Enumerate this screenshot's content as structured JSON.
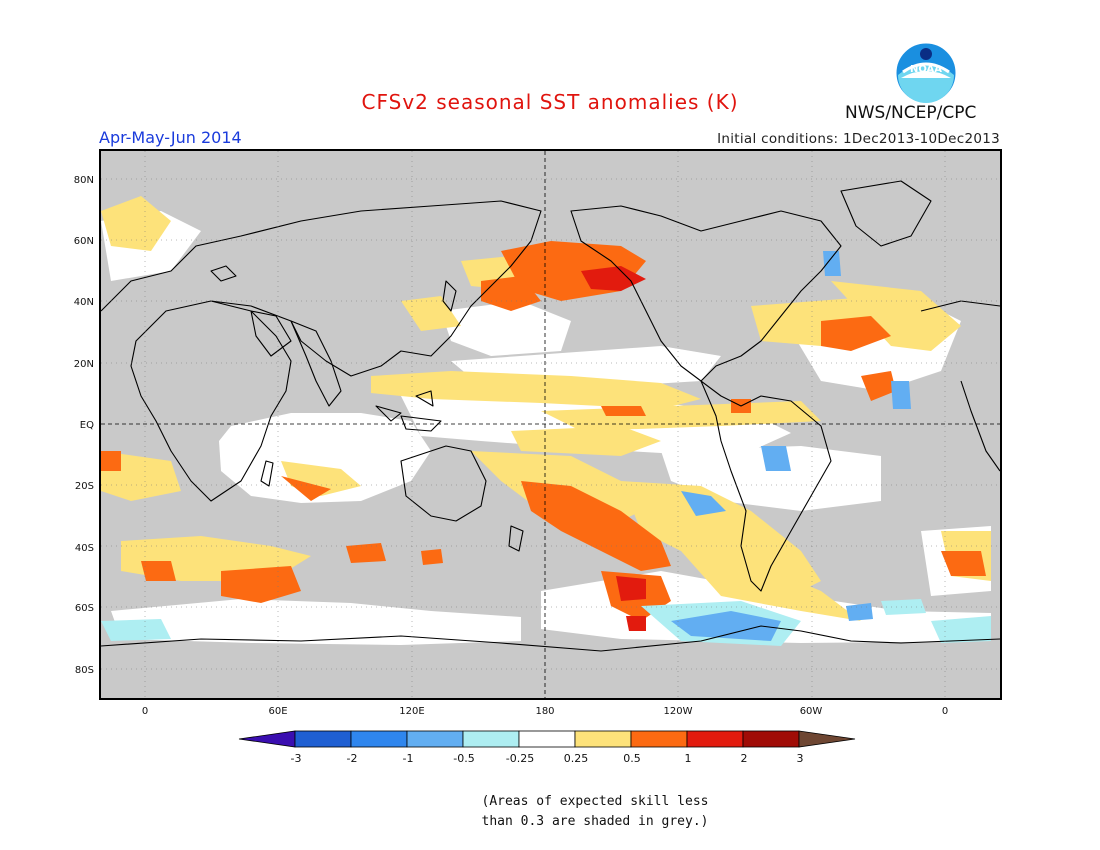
{
  "title": "CFSv2 seasonal SST anomalies (K)",
  "period": "Apr-May-Jun 2014",
  "initial_conditions": "Initial conditions: 1Dec2013-10Dec2013",
  "agency": "NWS/NCEP/CPC",
  "logo_text": "NOAA",
  "lat_labels": [
    "80N",
    "60N",
    "40N",
    "20N",
    "EQ",
    "20S",
    "40S",
    "60S",
    "80S"
  ],
  "lon_labels": [
    "0",
    "60E",
    "120E",
    "180",
    "120W",
    "60W",
    "0"
  ],
  "colorbar": {
    "labels": [
      "-3",
      "-2",
      "-1",
      "-0.5",
      "-0.25",
      "0.25",
      "0.5",
      "1",
      "2",
      "3"
    ],
    "colors": [
      "#3a0eb0",
      "#1f5fd2",
      "#2f86ee",
      "#62aef2",
      "#aeeef2",
      "#ffffff",
      "#fde27a",
      "#fc6a12",
      "#e21b0e",
      "#a00c06",
      "#6e4632"
    ]
  },
  "note_line1": "(Areas of expected skill less",
  "note_line2": "than 0.3 are shaded in grey.)",
  "colors": {
    "grey_low_skill": "#c9c9c9",
    "title": "#e0140e",
    "period": "#1a3bdc"
  }
}
